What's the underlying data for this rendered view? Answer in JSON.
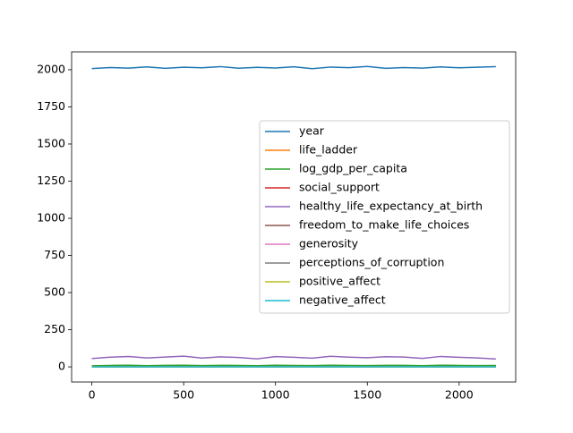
{
  "chart_data": {
    "type": "line",
    "x": [
      0,
      100,
      200,
      300,
      400,
      500,
      600,
      700,
      800,
      900,
      1000,
      1100,
      1200,
      1300,
      1400,
      1500,
      1600,
      1700,
      1800,
      1900,
      2000,
      2100,
      2200
    ],
    "series": [
      {
        "name": "year",
        "color": "#1f77b4",
        "values": [
          2008,
          2015,
          2011,
          2019,
          2009,
          2017,
          2013,
          2021,
          2010,
          2016,
          2012,
          2020,
          2007,
          2018,
          2014,
          2022,
          2009,
          2015,
          2011,
          2019,
          2013,
          2017,
          2021
        ]
      },
      {
        "name": "life_ladder",
        "color": "#ff7f0e",
        "values": [
          3.7,
          5.1,
          6.9,
          4.5,
          5.8,
          7.2,
          4.9,
          6.1,
          5.4,
          3.9,
          6.6,
          5.2,
          4.4,
          7.0,
          5.6,
          4.8,
          6.3,
          5.9,
          4.2,
          6.8,
          5.5,
          4.6,
          5.3
        ]
      },
      {
        "name": "log_gdp_per_capita",
        "color": "#2ca02c",
        "values": [
          7.4,
          9.6,
          10.8,
          8.2,
          9.9,
          11.1,
          8.7,
          10.2,
          9.3,
          7.9,
          10.6,
          9.1,
          8.5,
          11.0,
          9.7,
          8.8,
          10.4,
          9.8,
          8.1,
          10.9,
          9.5,
          8.4,
          9.2
        ]
      },
      {
        "name": "social_support",
        "color": "#d62728",
        "values": [
          0.55,
          0.82,
          0.91,
          0.71,
          0.86,
          0.94,
          0.78,
          0.88,
          0.8,
          0.63,
          0.9,
          0.84,
          0.74,
          0.93,
          0.85,
          0.76,
          0.89,
          0.83,
          0.68,
          0.92,
          0.81,
          0.72,
          0.79
        ]
      },
      {
        "name": "healthy_life_expectancy_at_birth",
        "color": "#9467bd",
        "values": [
          56,
          65,
          70,
          60,
          66,
          72,
          59,
          67,
          63,
          54,
          69,
          64,
          58,
          71,
          65,
          61,
          68,
          66,
          57,
          70,
          64,
          60,
          53
        ]
      },
      {
        "name": "freedom_to_make_life_choices",
        "color": "#8c564b",
        "values": [
          0.52,
          0.74,
          0.89,
          0.66,
          0.79,
          0.93,
          0.7,
          0.82,
          0.77,
          0.58,
          0.87,
          0.75,
          0.68,
          0.91,
          0.8,
          0.72,
          0.85,
          0.78,
          0.62,
          0.9,
          0.76,
          0.69,
          0.73
        ]
      },
      {
        "name": "generosity",
        "color": "#e377c2",
        "values": [
          -0.1,
          0.05,
          0.2,
          -0.05,
          0.1,
          0.3,
          -0.02,
          0.08,
          0.0,
          -0.15,
          0.18,
          0.03,
          -0.08,
          0.25,
          0.06,
          -0.04,
          0.12,
          0.02,
          -0.12,
          0.22,
          0.01,
          -0.06,
          0.04
        ]
      },
      {
        "name": "perceptions_of_corruption",
        "color": "#7f7f7f",
        "values": [
          0.85,
          0.72,
          0.41,
          0.88,
          0.79,
          0.35,
          0.9,
          0.68,
          0.81,
          0.93,
          0.52,
          0.76,
          0.87,
          0.3,
          0.74,
          0.89,
          0.63,
          0.78,
          0.91,
          0.45,
          0.8,
          0.86,
          0.7
        ]
      },
      {
        "name": "positive_affect",
        "color": "#bcbd22",
        "values": [
          0.52,
          0.68,
          0.79,
          0.61,
          0.72,
          0.82,
          0.58,
          0.74,
          0.66,
          0.49,
          0.77,
          0.69,
          0.6,
          0.81,
          0.71,
          0.63,
          0.75,
          0.7,
          0.55,
          0.8,
          0.67,
          0.62,
          0.65
        ]
      },
      {
        "name": "negative_affect",
        "color": "#17becf",
        "values": [
          0.35,
          0.24,
          0.19,
          0.31,
          0.22,
          0.16,
          0.33,
          0.26,
          0.28,
          0.4,
          0.2,
          0.25,
          0.3,
          0.17,
          0.23,
          0.32,
          0.21,
          0.27,
          0.37,
          0.18,
          0.29,
          0.34,
          0.26
        ]
      }
    ],
    "xlim": [
      -110,
      2308
    ],
    "ylim": [
      -102,
      2120
    ],
    "xticks": [
      0,
      500,
      1000,
      1500,
      2000
    ],
    "yticks": [
      0,
      250,
      500,
      750,
      1000,
      1250,
      1500,
      1750,
      2000
    ],
    "legend": "center right"
  }
}
